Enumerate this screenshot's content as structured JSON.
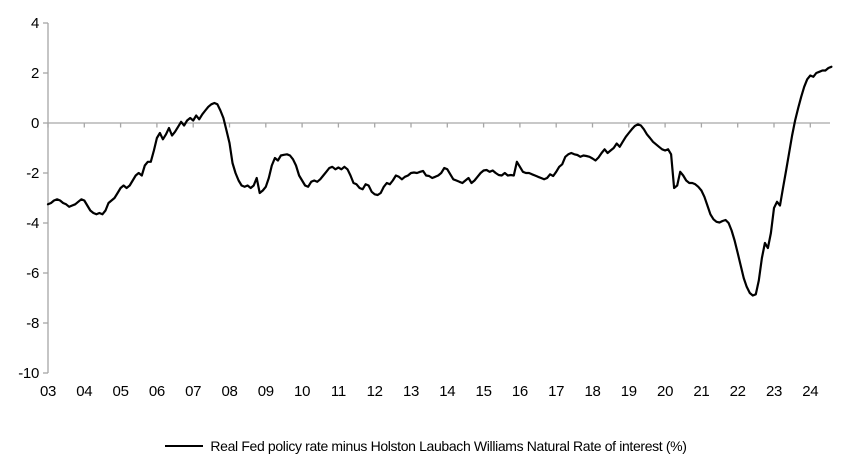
{
  "page": {
    "background": "#ffffff"
  },
  "legend": {
    "label": "Real Fed policy rate minus Holston Laubach Williams Natural Rate of interest (%)"
  },
  "chart_data": {
    "type": "line",
    "title": "",
    "xlabel": "",
    "ylabel": "",
    "grid": "zero-line-only",
    "legend_position": "bottom-center",
    "background_color": "#ffffff",
    "axis_color": "#a6a6a6",
    "text_color": "#000000",
    "ylim": [
      -10,
      4
    ],
    "xlim": [
      2003.0,
      2024.7
    ],
    "y_ticks": [
      4,
      2,
      0,
      -2,
      -4,
      -6,
      -8,
      -10
    ],
    "x_tick_years": [
      2003,
      2004,
      2005,
      2006,
      2007,
      2008,
      2009,
      2010,
      2011,
      2012,
      2013,
      2014,
      2015,
      2016,
      2017,
      2018,
      2019,
      2020,
      2021,
      2022,
      2023,
      2024
    ],
    "x_tick_labels": [
      "03",
      "04",
      "05",
      "06",
      "07",
      "08",
      "09",
      "10",
      "11",
      "12",
      "13",
      "14",
      "15",
      "16",
      "17",
      "18",
      "19",
      "20",
      "21",
      "22",
      "23",
      "24"
    ],
    "series": [
      {
        "name": "Real Fed policy rate minus Holston Laubach Williams Natural Rate of interest (%)",
        "color": "#000000",
        "sampling": "monthly",
        "x_start": 2003.0,
        "x_step_years": 0.08333,
        "y": [
          -3.25,
          -3.2,
          -3.1,
          -3.05,
          -3.1,
          -3.2,
          -3.25,
          -3.35,
          -3.3,
          -3.25,
          -3.15,
          -3.05,
          -3.1,
          -3.3,
          -3.5,
          -3.6,
          -3.65,
          -3.6,
          -3.65,
          -3.5,
          -3.2,
          -3.1,
          -3.0,
          -2.8,
          -2.6,
          -2.5,
          -2.6,
          -2.5,
          -2.3,
          -2.1,
          -2.0,
          -2.1,
          -1.7,
          -1.55,
          -1.55,
          -1.1,
          -0.6,
          -0.4,
          -0.65,
          -0.45,
          -0.2,
          -0.5,
          -0.35,
          -0.15,
          0.05,
          -0.1,
          0.1,
          0.2,
          0.1,
          0.3,
          0.15,
          0.35,
          0.5,
          0.65,
          0.75,
          0.8,
          0.75,
          0.5,
          0.2,
          -0.3,
          -0.8,
          -1.6,
          -2.0,
          -2.3,
          -2.5,
          -2.55,
          -2.5,
          -2.6,
          -2.5,
          -2.2,
          -2.8,
          -2.7,
          -2.55,
          -2.2,
          -1.7,
          -1.4,
          -1.5,
          -1.3,
          -1.27,
          -1.25,
          -1.3,
          -1.45,
          -1.7,
          -2.1,
          -2.3,
          -2.5,
          -2.55,
          -2.35,
          -2.3,
          -2.35,
          -2.25,
          -2.1,
          -1.95,
          -1.8,
          -1.75,
          -1.85,
          -1.78,
          -1.85,
          -1.75,
          -1.85,
          -2.1,
          -2.4,
          -2.45,
          -2.6,
          -2.65,
          -2.45,
          -2.5,
          -2.75,
          -2.85,
          -2.88,
          -2.8,
          -2.55,
          -2.4,
          -2.45,
          -2.3,
          -2.1,
          -2.15,
          -2.25,
          -2.15,
          -2.1,
          -2.0,
          -1.98,
          -2.0,
          -1.95,
          -1.92,
          -2.1,
          -2.12,
          -2.2,
          -2.15,
          -2.1,
          -2.0,
          -1.8,
          -1.85,
          -2.05,
          -2.25,
          -2.3,
          -2.35,
          -2.4,
          -2.3,
          -2.2,
          -2.4,
          -2.3,
          -2.15,
          -2.0,
          -1.9,
          -1.88,
          -1.95,
          -1.9,
          -2.0,
          -2.08,
          -2.1,
          -2.0,
          -2.1,
          -2.08,
          -2.1,
          -1.55,
          -1.75,
          -1.95,
          -2.0,
          -2.0,
          -2.05,
          -2.1,
          -2.15,
          -2.2,
          -2.25,
          -2.2,
          -2.05,
          -2.12,
          -1.95,
          -1.75,
          -1.65,
          -1.35,
          -1.25,
          -1.2,
          -1.25,
          -1.28,
          -1.35,
          -1.3,
          -1.32,
          -1.35,
          -1.42,
          -1.5,
          -1.38,
          -1.2,
          -1.05,
          -1.2,
          -1.1,
          -1.0,
          -0.82,
          -0.95,
          -0.75,
          -0.55,
          -0.4,
          -0.25,
          -0.12,
          -0.05,
          -0.1,
          -0.25,
          -0.45,
          -0.6,
          -0.75,
          -0.85,
          -0.95,
          -1.05,
          -1.1,
          -1.05,
          -1.25,
          -2.6,
          -2.5,
          -1.95,
          -2.1,
          -2.3,
          -2.4,
          -2.4,
          -2.45,
          -2.55,
          -2.7,
          -2.95,
          -3.3,
          -3.65,
          -3.85,
          -3.95,
          -3.98,
          -3.92,
          -3.88,
          -4.0,
          -4.3,
          -4.7,
          -5.2,
          -5.7,
          -6.2,
          -6.55,
          -6.8,
          -6.9,
          -6.85,
          -6.3,
          -5.4,
          -4.8,
          -5.0,
          -4.4,
          -3.4,
          -3.15,
          -3.3,
          -2.6,
          -1.9,
          -1.2,
          -0.5,
          0.1,
          0.6,
          1.05,
          1.45,
          1.75,
          1.9,
          1.85,
          2.0,
          2.05,
          2.1,
          2.1,
          2.2,
          2.25
        ]
      }
    ]
  }
}
